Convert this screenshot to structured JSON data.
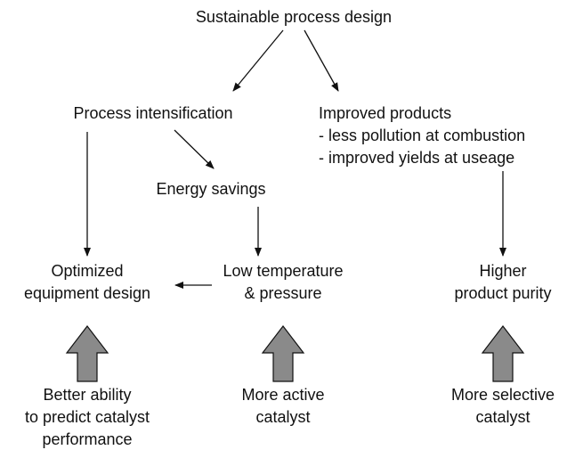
{
  "nodes": [
    {
      "lines": [
        "Sustainable process design"
      ]
    },
    {
      "lines": [
        "Process intensification"
      ]
    },
    {
      "lines": [
        "Improved products",
        "- less pollution at combustion",
        "- improved yields at useage"
      ]
    },
    {
      "lines": [
        "Energy savings"
      ]
    },
    {
      "lines": [
        "Optimized",
        "equipment design"
      ]
    },
    {
      "lines": [
        "Low temperature",
        "& pressure"
      ]
    },
    {
      "lines": [
        "Higher",
        "product purity"
      ]
    },
    {
      "lines": [
        "Better ability",
        "to predict catalyst",
        "performance"
      ]
    },
    {
      "lines": [
        "More active",
        "catalyst"
      ]
    },
    {
      "lines": [
        "More selective",
        "catalyst"
      ]
    }
  ]
}
